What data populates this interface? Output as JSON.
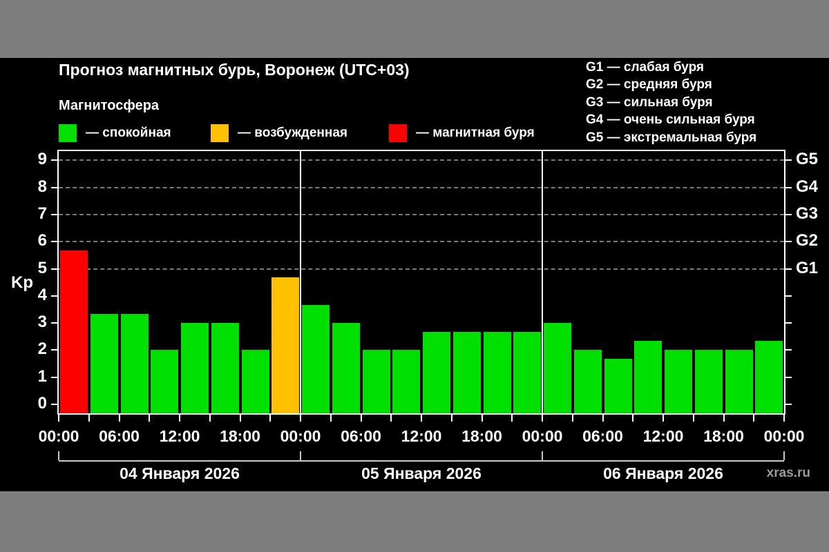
{
  "page": {
    "background": "#7d7d7d",
    "panel_background": "#000000"
  },
  "header": {
    "title": "Прогноз магнитных бурь, Воронеж (UTC+03)",
    "subtitle": "Магнитосфера"
  },
  "legend": {
    "items": [
      {
        "label": "— спокойная",
        "color": "#00e000"
      },
      {
        "label": "— возбужденная",
        "color": "#ffc000"
      },
      {
        "label": "— магнитная буря",
        "color": "#ff0000"
      }
    ]
  },
  "storm_scale": {
    "lines": [
      "G1 — слабая буря",
      "G2 — средняя буря",
      "G3 — сильная буря",
      "G4 — очень сильная буря",
      "G5 — экстремальная буря"
    ]
  },
  "watermark": "xras.ru",
  "chart_data": {
    "type": "bar",
    "title": "Прогноз магнитных бурь, Воронеж (UTC+03)",
    "ylabel": "Kp",
    "ylim": [
      0,
      9
    ],
    "y_ticks": [
      0,
      1,
      2,
      3,
      4,
      5,
      6,
      7,
      8,
      9
    ],
    "right_axis": {
      "labels": [
        "G1",
        "G2",
        "G3",
        "G4",
        "G5"
      ],
      "kp_levels": [
        5,
        6,
        7,
        8,
        9
      ]
    },
    "gridlines_kp": [
      5,
      6,
      7,
      8,
      9
    ],
    "grid": "dashed horizontal at storm levels only",
    "hours_per_bar": 3,
    "x_tick_labels": [
      "00:00",
      "06:00",
      "12:00",
      "18:00",
      "00:00",
      "06:00",
      "12:00",
      "18:00",
      "00:00",
      "06:00",
      "12:00",
      "18:00",
      "00:00"
    ],
    "days": [
      {
        "date": "04 Января 2026",
        "values": [
          5.67,
          3.33,
          3.33,
          2.0,
          3.0,
          3.0,
          2.0,
          4.67
        ]
      },
      {
        "date": "05 Января 2026",
        "values": [
          3.67,
          3.0,
          2.0,
          2.0,
          2.67,
          2.67,
          2.67,
          2.67
        ]
      },
      {
        "date": "06 Января 2026",
        "values": [
          3.0,
          2.0,
          1.67,
          2.33,
          2.0,
          2.0,
          2.0,
          2.33
        ]
      }
    ],
    "color_rules": {
      "quiet_below_kp": 4,
      "storm_from_kp": 5
    },
    "colors": {
      "quiet": "#00e000",
      "excited": "#ffc000",
      "storm": "#ff0000"
    }
  }
}
